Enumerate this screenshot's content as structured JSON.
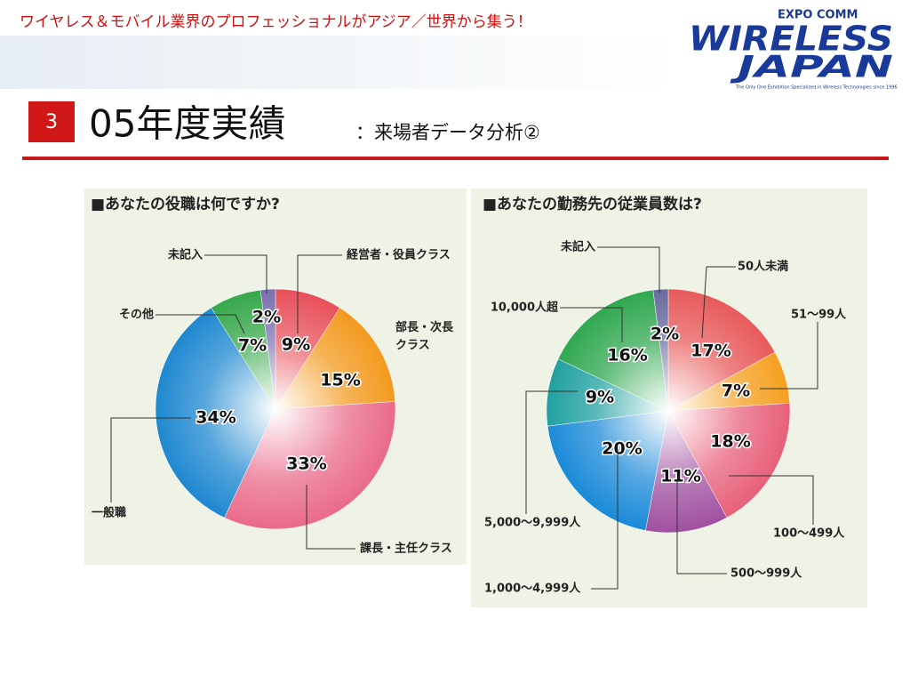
{
  "header": {
    "tagline": "ワイヤレス＆モバイル業界のプロフェッショナルがアジア／世界から集う！",
    "logo_top": "EXPO COMM",
    "logo_line1": "WIRELESS",
    "logo_line2": "JAPAN",
    "logo_caption": "The Only One Exhibition Specialized in Wireless Technologies since 1996"
  },
  "slide": {
    "number": "3",
    "title": "05年度実績",
    "subtitle": "：来場者データ分析②"
  },
  "chart_data": [
    {
      "type": "pie",
      "title": "■あなたの役職は何ですか?",
      "categories": [
        "経営者・役員クラス",
        "部長・次長クラス",
        "課長・主任クラス",
        "一般職",
        "その他",
        "未記入"
      ],
      "values": [
        9,
        15,
        33,
        34,
        7,
        2
      ],
      "value_labels": [
        "9%",
        "15%",
        "33%",
        "34%",
        "7%",
        "2%"
      ],
      "colors": [
        "#e8505a",
        "#f39a1e",
        "#ea6a8a",
        "#1e88d0",
        "#36a84a",
        "#7a70b0"
      ]
    },
    {
      "type": "pie",
      "title": "■あなたの勤務先の従業員数は?",
      "categories": [
        "50人未満",
        "51〜99人",
        "100〜499人",
        "500〜999人",
        "1,000〜4,999人",
        "5,000〜9,999人",
        "10,000人超",
        "未記入"
      ],
      "values": [
        17,
        7,
        18,
        11,
        20,
        9,
        16,
        2
      ],
      "value_labels": [
        "17%",
        "7%",
        "18%",
        "11%",
        "20%",
        "9%",
        "16%",
        "2%"
      ],
      "colors": [
        "#e85a5a",
        "#f5a020",
        "#e8607a",
        "#a050a0",
        "#1a8ad8",
        "#20a0a0",
        "#30a850",
        "#6a6aa0"
      ]
    }
  ]
}
